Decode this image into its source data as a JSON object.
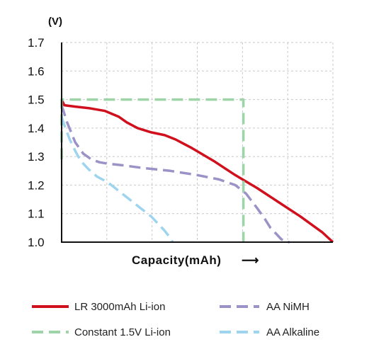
{
  "chart_data": {
    "type": "line",
    "ylabel": "(V)",
    "xlabel": "Capacity(mAh)",
    "xlabel_arrow": "⟶",
    "ylim": [
      1.0,
      1.7
    ],
    "xlim": [
      0,
      100
    ],
    "yticks": [
      "1.7",
      "1.6",
      "1.5",
      "1.4",
      "1.3",
      "1.2",
      "1.1",
      "1.0"
    ],
    "ytick_values": [
      1.7,
      1.6,
      1.5,
      1.4,
      1.3,
      1.2,
      1.1,
      1.0
    ],
    "grid": true,
    "legend_placement": "bottom",
    "series": [
      {
        "name": "LR 3000mAh Li-ion",
        "color": "#d0101d",
        "dash": "solid",
        "x": [
          0,
          1,
          5,
          10,
          16,
          21,
          24,
          28,
          33,
          38,
          42,
          48,
          56,
          64,
          72,
          80,
          88,
          96,
          100
        ],
        "y": [
          1.5,
          1.48,
          1.475,
          1.47,
          1.46,
          1.44,
          1.42,
          1.4,
          1.385,
          1.375,
          1.36,
          1.33,
          1.285,
          1.235,
          1.19,
          1.14,
          1.09,
          1.035,
          1.0
        ]
      },
      {
        "name": "AA NiMH",
        "color": "#9b93c7",
        "dash": "dashed",
        "x": [
          0,
          2,
          5,
          8,
          11,
          14,
          17,
          22,
          30,
          40,
          50,
          58,
          64,
          68,
          72,
          75,
          77,
          79,
          81,
          83,
          84
        ],
        "y": [
          1.48,
          1.42,
          1.35,
          1.31,
          1.29,
          1.28,
          1.275,
          1.27,
          1.26,
          1.25,
          1.235,
          1.22,
          1.2,
          1.17,
          1.12,
          1.08,
          1.05,
          1.03,
          1.01,
          1.0,
          1.0
        ]
      },
      {
        "name": "Constant 1.5V Li-ion",
        "color": "#9fd4a8",
        "dash": "dashed",
        "x": [
          0,
          0,
          67,
          67
        ],
        "y": [
          1.29,
          1.5,
          1.5,
          1.0
        ]
      },
      {
        "name": "AA Alkaline",
        "color": "#9fd4ee",
        "dash": "dashed",
        "x": [
          0,
          1,
          3,
          5,
          7,
          10,
          13,
          17,
          21,
          25,
          29,
          33,
          36,
          38,
          40,
          41
        ],
        "y": [
          1.44,
          1.41,
          1.36,
          1.32,
          1.285,
          1.255,
          1.23,
          1.21,
          1.18,
          1.15,
          1.12,
          1.09,
          1.06,
          1.04,
          1.015,
          1.0
        ]
      }
    ]
  },
  "legend": {
    "items": [
      "LR 3000mAh Li-ion",
      "AA NiMH",
      "Constant 1.5V Li-ion",
      "AA Alkaline"
    ]
  }
}
